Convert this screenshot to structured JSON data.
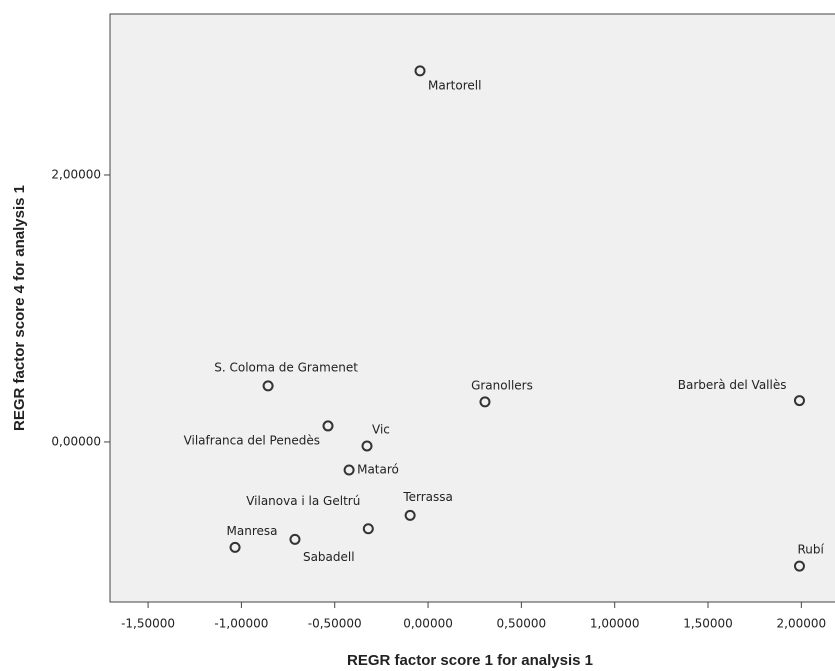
{
  "chart_data": {
    "type": "scatter",
    "xlabel": "REGR factor score   1 for analysis 1",
    "ylabel": "REGR factor score   4 for analysis 1",
    "xlim": [
      -1.704,
      2.25
    ],
    "ylim": [
      -1.199,
      3.206
    ],
    "xticks": [
      {
        "value": -1.5,
        "label": "-1,50000"
      },
      {
        "value": -1.0,
        "label": "-1,00000"
      },
      {
        "value": -0.5,
        "label": "-0,50000"
      },
      {
        "value": 0,
        "label": "0,00000"
      },
      {
        "value": 0.5,
        "label": "0,50000"
      },
      {
        "value": 1.0,
        "label": "1,00000"
      },
      {
        "value": 1.5,
        "label": "1,50000"
      },
      {
        "value": 2.0,
        "label": "2,00000"
      }
    ],
    "yticks": [
      {
        "value": 0,
        "label": "0,00000"
      },
      {
        "value": 2.0,
        "label": "2,00000"
      }
    ],
    "labels": [
      "Martorell",
      "S. Coloma de Gramenet",
      "Granollers",
      "Barberà del Vallès",
      "Vilafranca del Penedès",
      "Vic",
      "Mataró",
      "Terrassa",
      "Vilanova i la Geltrú",
      "Sabadell",
      "Manresa",
      "Rubí"
    ],
    "x": [
      -0.043,
      -0.857,
      0.305,
      1.99,
      -0.536,
      -0.327,
      -0.423,
      -0.096,
      -0.32,
      -0.713,
      -1.034,
      1.99
    ],
    "y": [
      2.78,
      0.42,
      0.3,
      0.31,
      0.12,
      -0.03,
      -0.21,
      -0.55,
      -0.65,
      -0.73,
      -0.79,
      -0.93
    ],
    "color": "#333333"
  }
}
